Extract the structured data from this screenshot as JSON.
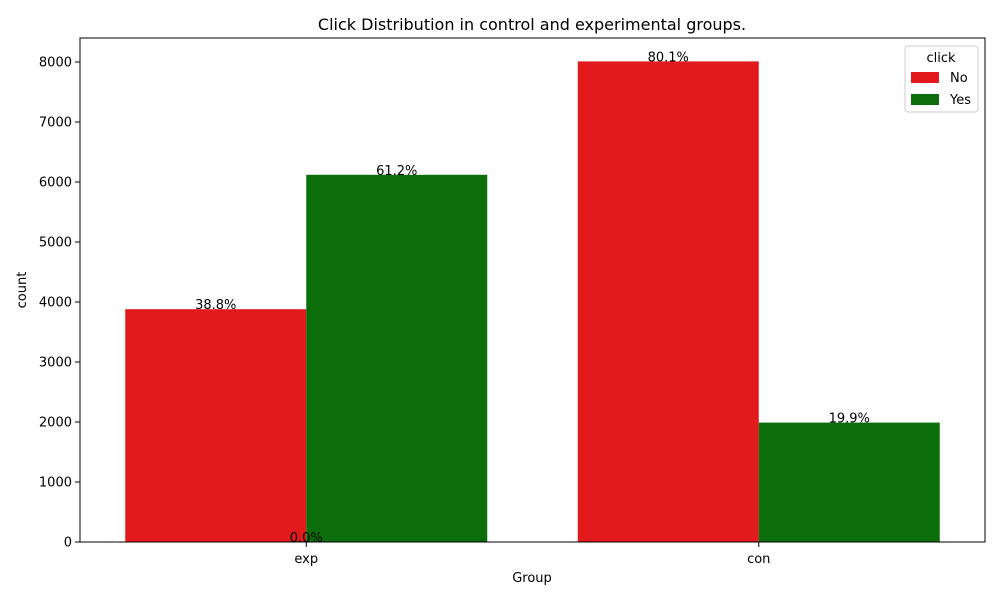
{
  "chart_data": {
    "type": "bar",
    "title": "Click Distribution in control and experimental groups.",
    "xlabel": "Group",
    "ylabel": "count",
    "categories": [
      "exp",
      "con"
    ],
    "series": [
      {
        "name": "No",
        "color": "#e31a1c",
        "values": [
          3880,
          8010
        ],
        "labels": [
          "38.8%",
          "80.1%"
        ]
      },
      {
        "name": "Yes",
        "color": "#0b6e0b",
        "values": [
          6120,
          1990
        ],
        "labels": [
          "61.2%",
          "19.9%"
        ]
      }
    ],
    "extra_labels": [
      {
        "text": "0.0%",
        "category": "exp",
        "value": 0
      }
    ],
    "ylim": [
      0,
      8400
    ],
    "yticks": [
      0,
      1000,
      2000,
      3000,
      4000,
      5000,
      6000,
      7000,
      8000
    ],
    "grid": false,
    "legend": {
      "title": "click",
      "placement": "top-right"
    }
  }
}
